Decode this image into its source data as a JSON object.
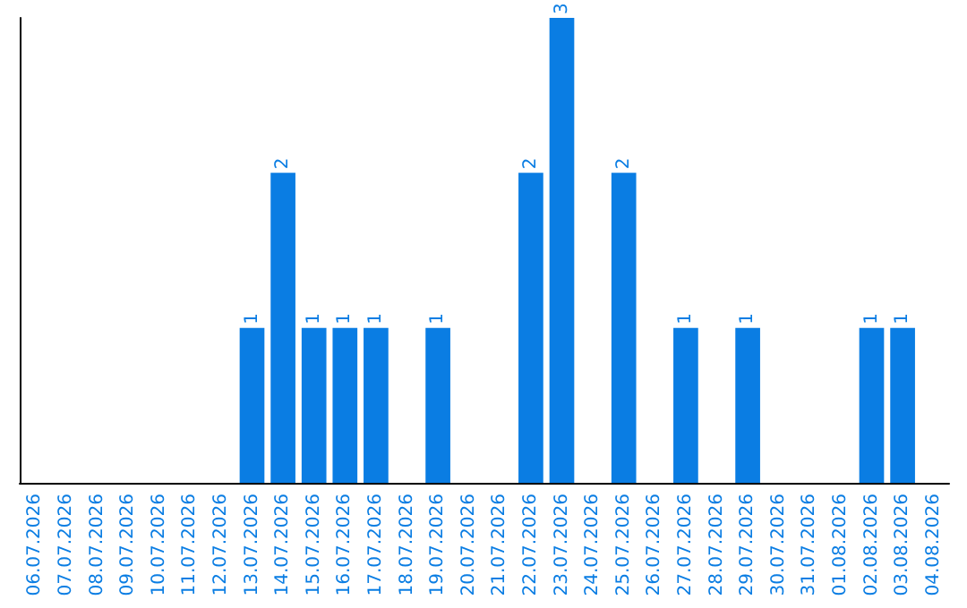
{
  "chart_data": {
    "type": "bar",
    "categories": [
      "06.07.2026",
      "07.07.2026",
      "08.07.2026",
      "09.07.2026",
      "10.07.2026",
      "11.07.2026",
      "12.07.2026",
      "13.07.2026",
      "14.07.2026",
      "15.07.2026",
      "16.07.2026",
      "17.07.2026",
      "18.07.2026",
      "19.07.2026",
      "20.07.2026",
      "21.07.2026",
      "22.07.2026",
      "23.07.2026",
      "24.07.2026",
      "25.07.2026",
      "26.07.2026",
      "27.07.2026",
      "28.07.2026",
      "29.07.2026",
      "30.07.2026",
      "31.07.2026",
      "01.08.2026",
      "02.08.2026",
      "03.08.2026",
      "04.08.2026"
    ],
    "values": [
      0,
      0,
      0,
      0,
      0,
      0,
      0,
      1,
      2,
      1,
      1,
      1,
      0,
      1,
      0,
      0,
      2,
      3,
      0,
      2,
      0,
      1,
      0,
      1,
      0,
      0,
      0,
      1,
      1,
      0
    ],
    "value_labels": [
      null,
      null,
      null,
      null,
      null,
      null,
      null,
      "1",
      "2",
      "1",
      "1",
      "1",
      null,
      "1",
      null,
      null,
      "2",
      "3",
      null,
      "2",
      null,
      "1",
      null,
      "1",
      null,
      null,
      null,
      "1",
      "1",
      null
    ],
    "color": "#0a7de3",
    "tick_labels": "x"
  }
}
